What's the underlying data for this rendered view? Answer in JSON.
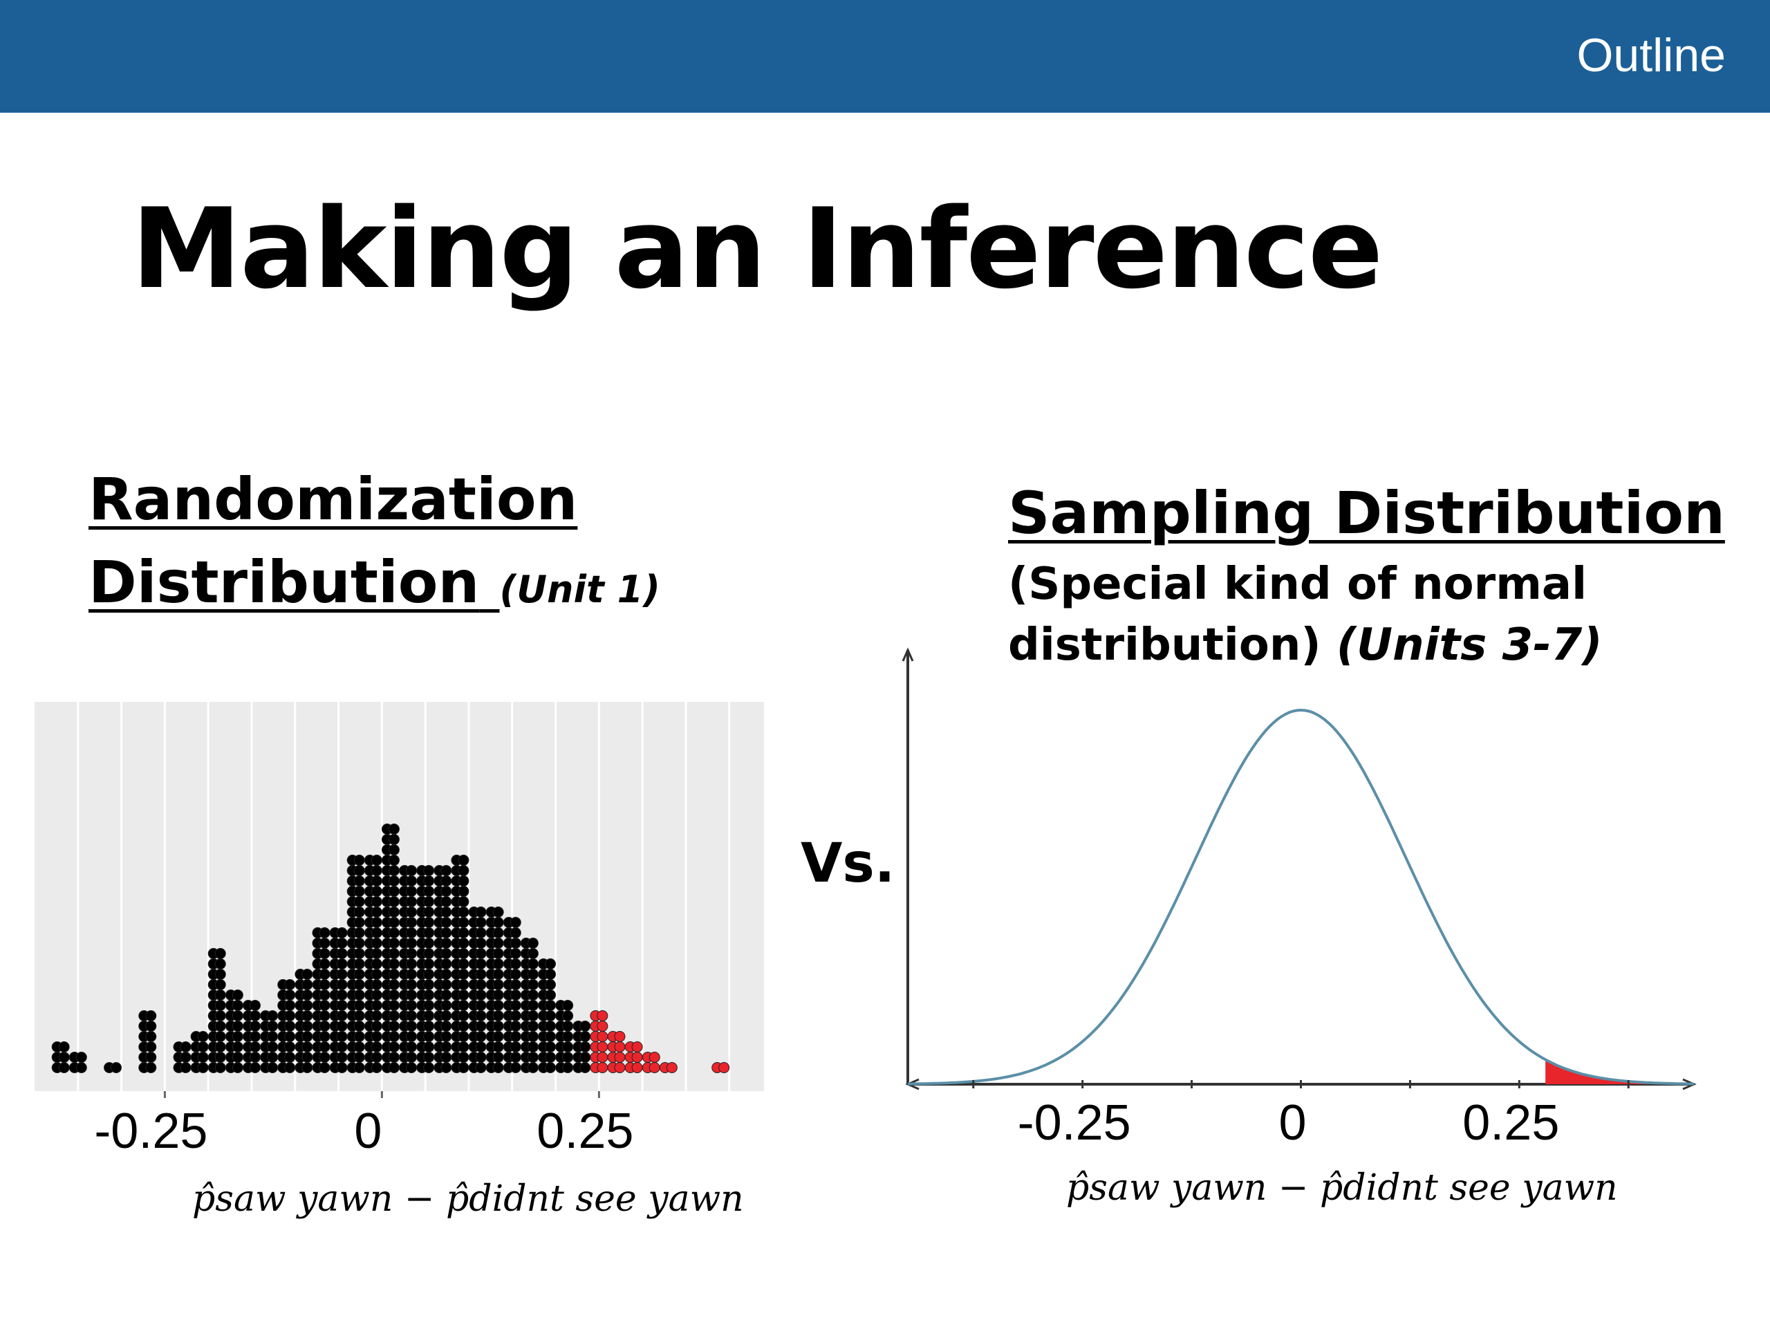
{
  "header": {
    "outline_label": "Outline"
  },
  "title": "Making an Inference",
  "vs_label": "Vs.",
  "left_panel": {
    "heading_line1": "Randomization",
    "heading_line2": "Distribution",
    "heading_note": "(Unit 1)",
    "x_axis_label": "p̂saw yawn − p̂didnt see yawn"
  },
  "right_panel": {
    "heading": "Sampling Distribution",
    "subtitle_line1": "(Special kind of normal",
    "subtitle_line2": "distribution)",
    "subtitle_note": "(Units 3-7)",
    "x_axis_label": "p̂saw yawn − p̂didnt see yawn"
  },
  "colors": {
    "header_bg": "#1c5f96",
    "dot": "#000000",
    "highlight": "#e8252b",
    "curve": "#5b8fa8",
    "plot_bg": "#ebebeb"
  },
  "chart_data": [
    {
      "type": "scatter",
      "subtype": "dotplot",
      "tick_labels": [
        "-0.25",
        "0",
        "0.25"
      ],
      "x_ticks": [
        -0.25,
        0,
        0.25
      ],
      "xlim": [
        -0.4,
        0.44
      ],
      "grid": true,
      "bin_width": 0.02,
      "bins_x": [
        -0.37,
        -0.35,
        -0.31,
        -0.27,
        -0.23,
        -0.21,
        -0.19,
        -0.17,
        -0.15,
        -0.13,
        -0.11,
        -0.09,
        -0.07,
        -0.05,
        -0.03,
        -0.01,
        0.01,
        0.03,
        0.05,
        0.07,
        0.09,
        0.11,
        0.13,
        0.15,
        0.17,
        0.19,
        0.21,
        0.23,
        0.25,
        0.27,
        0.29,
        0.31,
        0.33,
        0.39
      ],
      "counts": [
        3,
        2,
        1,
        6,
        3,
        4,
        12,
        8,
        7,
        6,
        9,
        10,
        14,
        14,
        21,
        21,
        24,
        20,
        20,
        20,
        21,
        16,
        16,
        15,
        13,
        11,
        7,
        5,
        6,
        4,
        3,
        2,
        1,
        1
      ],
      "highlight_from_x": 0.25
    },
    {
      "type": "line",
      "subtype": "normal-curve",
      "tick_labels": [
        "-0.25",
        "0",
        "0.25"
      ],
      "x_ticks": [
        -0.25,
        0,
        0.25
      ],
      "xlim": [
        -0.45,
        0.45
      ],
      "mean": 0,
      "sd": 0.12,
      "shaded_from_x": 0.28
    }
  ]
}
